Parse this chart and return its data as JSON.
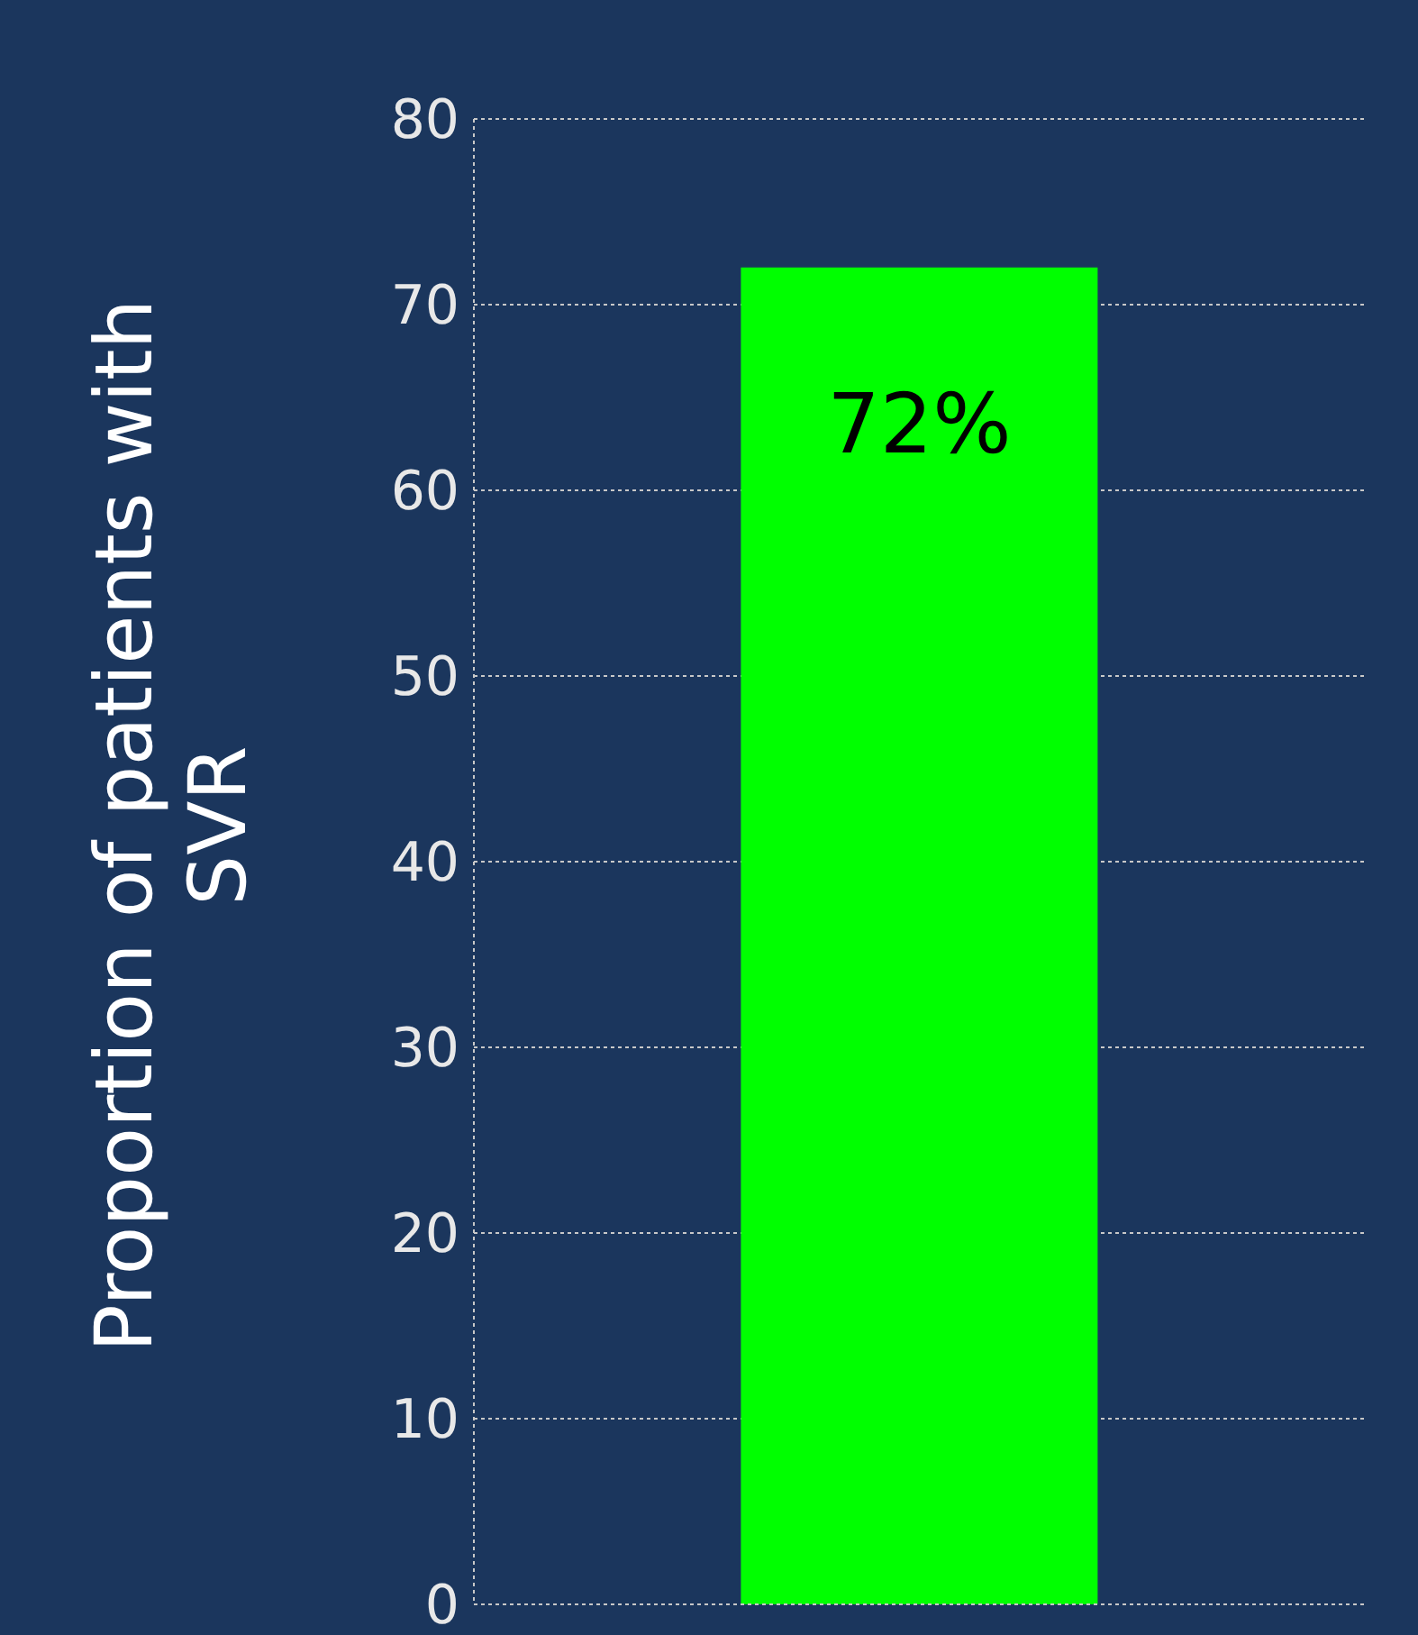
{
  "chart_data": {
    "type": "bar",
    "ylabel": "Proportion of patients with SVR",
    "categories": [
      null
    ],
    "values": [
      72
    ],
    "value_labels": [
      "72%"
    ],
    "color": "#00ff00",
    "ylim": [
      0,
      80
    ],
    "yticks": [
      0,
      10,
      20,
      30,
      40,
      50,
      60,
      70,
      80
    ],
    "grid": "y"
  }
}
